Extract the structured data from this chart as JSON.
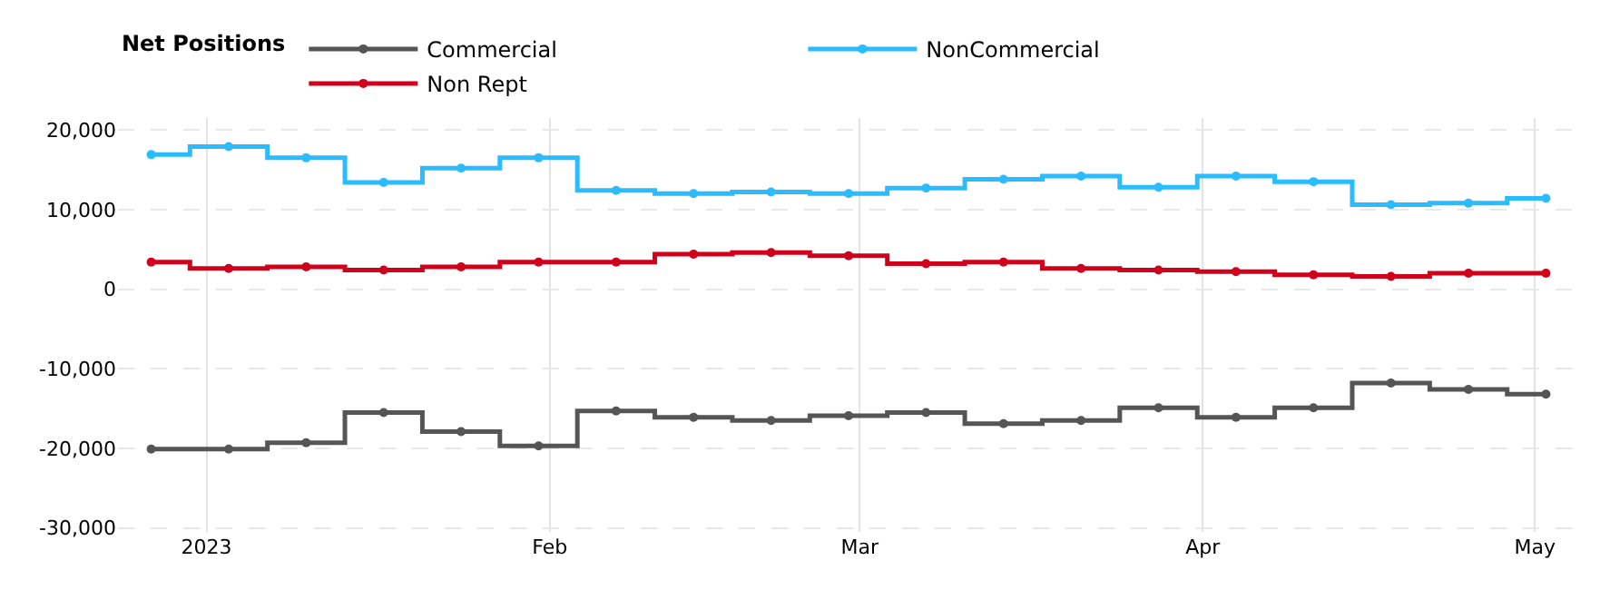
{
  "chart_data": {
    "type": "step",
    "legend_title": "Net Positions",
    "legend": "top left",
    "grid": true,
    "marker": "circle",
    "line_style": "solid",
    "x": [
      "2022-12-27",
      "2023-01-03",
      "2023-01-10",
      "2023-01-17",
      "2023-01-24",
      "2023-01-31",
      "2023-02-07",
      "2023-02-14",
      "2023-02-21",
      "2023-02-28",
      "2023-03-07",
      "2023-03-14",
      "2023-03-21",
      "2023-03-28",
      "2023-04-04",
      "2023-04-11",
      "2023-04-18",
      "2023-04-25",
      "2023-05-02"
    ],
    "xlim": [
      "2022-12-24",
      "2023-05-05"
    ],
    "xticks": [
      {
        "value": "2023-01-01",
        "label": "2023"
      },
      {
        "value": "2023-02-01",
        "label": "Feb"
      },
      {
        "value": "2023-03-01",
        "label": "Mar"
      },
      {
        "value": "2023-04-01",
        "label": "Apr"
      },
      {
        "value": "2023-05-01",
        "label": "May"
      }
    ],
    "ylim": [
      -30500,
      21500
    ],
    "yticks": [
      {
        "value": -30000,
        "label": "-30,000"
      },
      {
        "value": -20000,
        "label": "-20,000"
      },
      {
        "value": -10000,
        "label": "-10,000"
      },
      0,
      {
        "value": 10000,
        "label": "10,000"
      },
      {
        "value": 20000,
        "label": "20,000"
      }
    ],
    "series": [
      {
        "name": "Commercial",
        "color": "#555555",
        "values": [
          -20100,
          -20100,
          -19300,
          -15500,
          -17900,
          -19700,
          -15300,
          -16100,
          -16500,
          -15900,
          -15500,
          -16900,
          -16500,
          -14900,
          -16100,
          -14900,
          -11800,
          -12600,
          -13200
        ]
      },
      {
        "name": "NonCommercial",
        "color": "#2bbcff",
        "values": [
          16900,
          17900,
          16500,
          13400,
          15200,
          16500,
          12400,
          12000,
          12200,
          12000,
          12700,
          13800,
          14200,
          12800,
          14200,
          13500,
          10600,
          10800,
          11400
        ]
      },
      {
        "name": "Non Rept",
        "color": "#d0021b",
        "values": [
          3400,
          2600,
          2800,
          2400,
          2800,
          3400,
          3400,
          4400,
          4600,
          4200,
          3200,
          3400,
          2600,
          2400,
          2200,
          1800,
          1600,
          2000,
          2000
        ]
      }
    ]
  }
}
